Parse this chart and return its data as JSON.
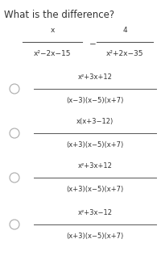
{
  "title": "What is the difference?",
  "bg_color": "#ffffff",
  "text_color": "#333333",
  "title_fontsize": 8.5,
  "math_fontsize": 6.5,
  "choice_fontsize": 6.0,
  "question": {
    "num1": "x",
    "den1": "x²−2x−15",
    "num2": "4",
    "den2": "x²+2x−35"
  },
  "choices": [
    {
      "num": "x²+3x+12",
      "den": "(x−3)(x−5)(x+7)"
    },
    {
      "num": "x(x+3−12)",
      "den": "(x+3)(x−5)(x+7)"
    },
    {
      "num": "x²+3x+12",
      "den": "(x+3)(x−5)(x+7)"
    },
    {
      "num": "x²+3x−12",
      "den": "(x+3)(x−5)(x+7)"
    }
  ],
  "circle_color": "#aaaaaa",
  "line_color": "#555555"
}
